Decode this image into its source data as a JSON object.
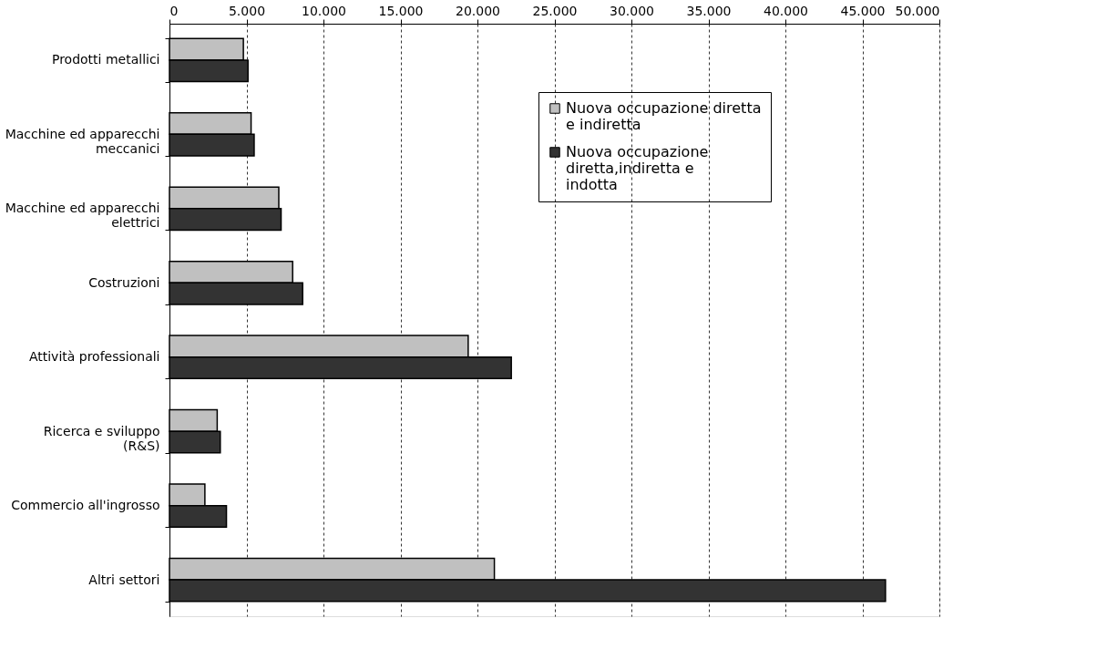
{
  "chart_data": {
    "type": "bar",
    "orientation": "horizontal",
    "categories": [
      "Prodotti metallici",
      "Macchine ed apparecchi meccanici",
      "Macchine ed apparecchi elettrici",
      "Costruzioni",
      "Attività professionali",
      "Ricerca e sviluppo (R&S)",
      "Commercio all'ingrosso",
      "Altri settori"
    ],
    "series": [
      {
        "name": "Nuova occupazione diretta e indiretta",
        "color": "#c0c0c0",
        "values": [
          4800,
          5300,
          7100,
          8000,
          19400,
          3100,
          2300,
          21100
        ]
      },
      {
        "name": "Nuova occupazione diretta,indiretta e indotta",
        "color": "#333333",
        "values": [
          5100,
          5500,
          7250,
          8650,
          22200,
          3300,
          3700,
          46500
        ]
      }
    ],
    "xlim": [
      0,
      50000
    ],
    "xticks": [
      0,
      {
        "value": 5000,
        "label": "5.000"
      },
      {
        "value": 10000,
        "label": "10.000"
      },
      {
        "value": 15000,
        "label": "15.000"
      },
      {
        "value": 20000,
        "label": "20.000"
      },
      {
        "value": 25000,
        "label": "25.000"
      },
      {
        "value": 30000,
        "label": "30.000"
      },
      {
        "value": 35000,
        "label": "35.000"
      },
      {
        "value": 40000,
        "label": "40.000"
      },
      {
        "value": 45000,
        "label": "45.000"
      },
      {
        "value": 50000,
        "label": "50.000"
      }
    ],
    "grid": "x",
    "legend": "top right"
  }
}
